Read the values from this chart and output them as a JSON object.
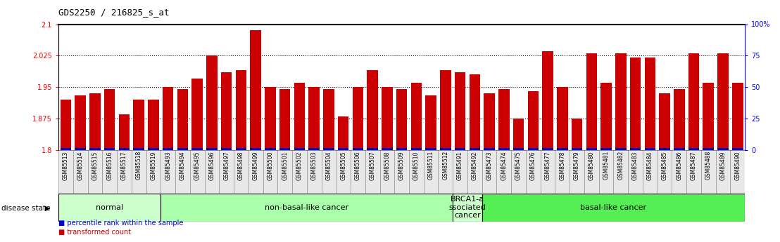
{
  "title": "GDS2250 / 216825_s_at",
  "samples": [
    "GSM85513",
    "GSM85514",
    "GSM85515",
    "GSM85516",
    "GSM85517",
    "GSM85518",
    "GSM85519",
    "GSM85493",
    "GSM85494",
    "GSM85495",
    "GSM85496",
    "GSM85497",
    "GSM85498",
    "GSM85499",
    "GSM85500",
    "GSM85501",
    "GSM85502",
    "GSM85503",
    "GSM85504",
    "GSM85505",
    "GSM85506",
    "GSM85507",
    "GSM85508",
    "GSM85509",
    "GSM85510",
    "GSM85511",
    "GSM85512",
    "GSM85491",
    "GSM85492",
    "GSM85473",
    "GSM85474",
    "GSM85475",
    "GSM85476",
    "GSM85477",
    "GSM85478",
    "GSM85479",
    "GSM85480",
    "GSM85481",
    "GSM85482",
    "GSM85483",
    "GSM85484",
    "GSM85485",
    "GSM85486",
    "GSM85487",
    "GSM85488",
    "GSM85489",
    "GSM85490"
  ],
  "values": [
    1.92,
    1.93,
    1.935,
    1.945,
    1.885,
    1.92,
    1.92,
    1.95,
    1.945,
    1.97,
    2.025,
    1.985,
    1.99,
    2.085,
    1.95,
    1.945,
    1.96,
    1.95,
    1.945,
    1.88,
    1.95,
    1.99,
    1.95,
    1.945,
    1.96,
    1.93,
    1.99,
    1.985,
    1.98,
    1.935,
    1.945,
    1.875,
    1.94,
    2.035,
    1.95,
    1.875,
    2.03,
    1.96,
    2.03,
    2.02,
    2.02,
    1.935,
    1.945,
    2.03,
    1.96,
    2.03,
    1.96
  ],
  "bar_color": "#cc0000",
  "blue_color": "#0000cc",
  "ymin": 1.8,
  "ymax": 2.1,
  "yticks": [
    1.8,
    1.875,
    1.95,
    2.025,
    2.1
  ],
  "ytick_labels": [
    "1.8",
    "1.875",
    "1.95",
    "2.025",
    "2.1"
  ],
  "right_yticks": [
    0,
    25,
    50,
    75,
    100
  ],
  "right_ytick_labels": [
    "0",
    "25",
    "50",
    "75",
    "100%"
  ],
  "dotted_lines": [
    1.875,
    1.95,
    2.025
  ],
  "groups": [
    {
      "label": "normal",
      "start": 0,
      "end": 7,
      "color": "#ccffcc"
    },
    {
      "label": "non-basal-like cancer",
      "start": 7,
      "end": 27,
      "color": "#aaffaa"
    },
    {
      "label": "BRCA1-a\nssociated\ncancer",
      "start": 27,
      "end": 29,
      "color": "#ccffcc"
    },
    {
      "label": "basal-like cancer",
      "start": 29,
      "end": 47,
      "color": "#55ee55"
    }
  ],
  "disease_state_label": "disease state",
  "legend_items": [
    {
      "label": "transformed count",
      "color": "#cc0000"
    },
    {
      "label": "percentile rank within the sample",
      "color": "#0000cc"
    }
  ],
  "title_fontsize": 9,
  "tick_fontsize": 7,
  "xlabel_fontsize": 5.5,
  "group_fontsize": 8
}
